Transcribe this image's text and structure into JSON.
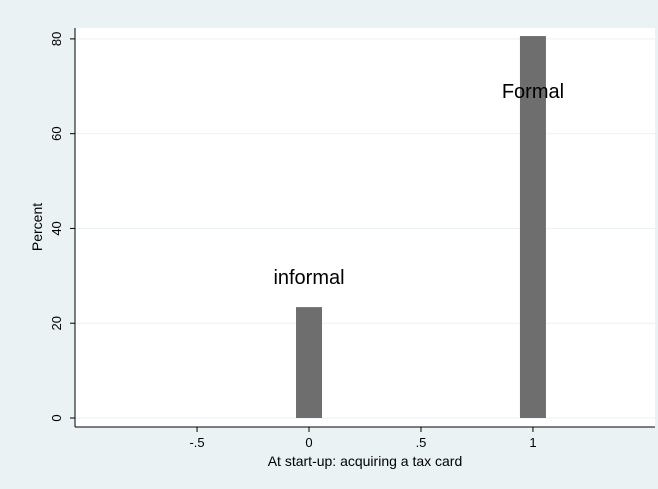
{
  "chart_data": {
    "type": "bar",
    "x": [
      0,
      1
    ],
    "values": [
      23.4,
      80.6
    ],
    "color": "#6e6e6e",
    "annotations": [
      "informal",
      "Formal"
    ],
    "x_label": "At start-up: acquiring a tax card",
    "y_label": "Percent",
    "xlim": [
      -1.045,
      1.545
    ],
    "ylim": [
      -1.9,
      82.3
    ],
    "xticks": [
      {
        "value": -0.5,
        "label": "-.5"
      },
      0,
      {
        "value": 0.5,
        "label": ".5"
      },
      1
    ],
    "yticks": [
      0,
      20,
      40,
      60,
      80
    ],
    "grid": true
  }
}
